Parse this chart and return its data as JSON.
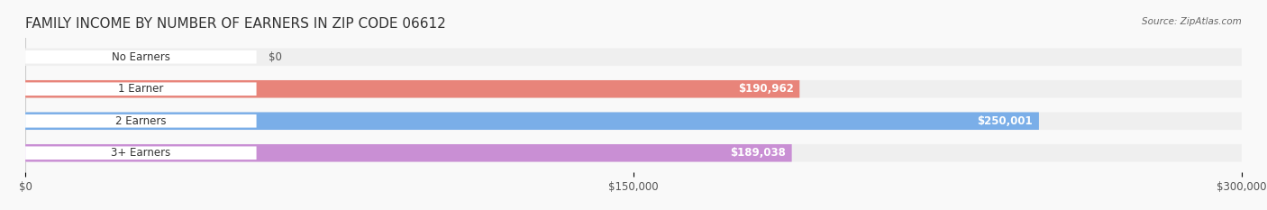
{
  "title": "FAMILY INCOME BY NUMBER OF EARNERS IN ZIP CODE 06612",
  "source": "Source: ZipAtlas.com",
  "categories": [
    "No Earners",
    "1 Earner",
    "2 Earners",
    "3+ Earners"
  ],
  "values": [
    0,
    190962,
    250001,
    189038
  ],
  "bar_colors": [
    "#f5c89a",
    "#e8847a",
    "#7aaee8",
    "#c98fd4"
  ],
  "bar_bg_color": "#efefef",
  "label_values": [
    "$0",
    "$190,962",
    "$250,001",
    "$189,038"
  ],
  "xlim": [
    0,
    300000
  ],
  "xticks": [
    0,
    150000,
    300000
  ],
  "xtick_labels": [
    "$0",
    "$150,000",
    "$300,000"
  ],
  "background_color": "#f9f9f9",
  "title_fontsize": 11,
  "bar_height": 0.55,
  "fig_width": 14.06,
  "fig_height": 2.33
}
